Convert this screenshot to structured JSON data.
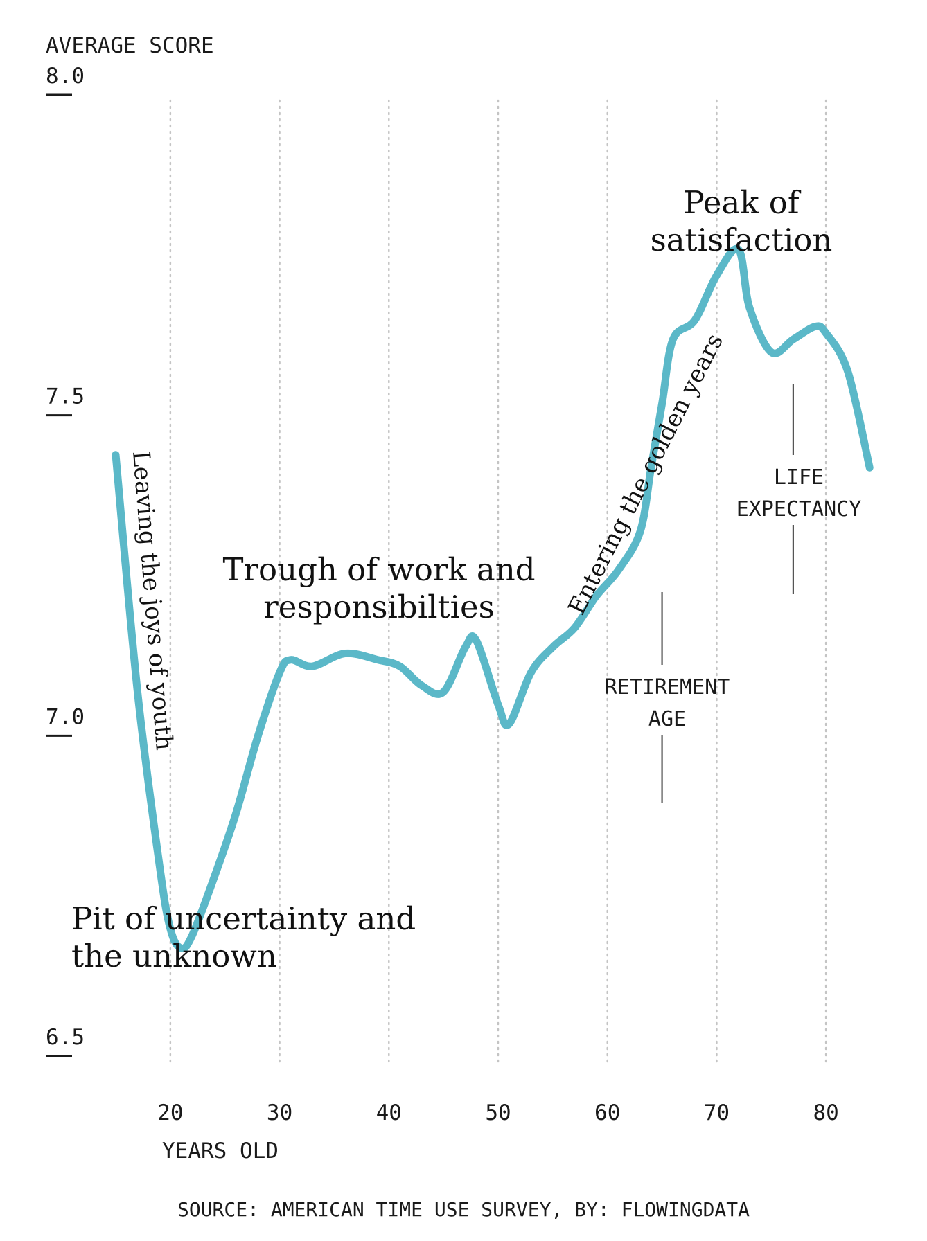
{
  "chart_data": {
    "type": "line",
    "ylabel": "AVERAGE SCORE",
    "xlabel": "YEARS OLD",
    "ylim": [
      6.5,
      8.0
    ],
    "xlim": [
      15,
      85
    ],
    "yticks": [
      "8.0",
      "7.5",
      "7.0",
      "6.5"
    ],
    "xticks": [
      "20",
      "30",
      "40",
      "50",
      "60",
      "70",
      "80"
    ],
    "grid": "vertical dotted lines at each x tick",
    "line_color": "#5bb8c8",
    "series": [
      {
        "x": [
          15,
          17,
          19,
          20,
          21,
          22,
          24,
          26,
          28,
          30,
          31,
          33,
          36,
          39,
          41,
          43,
          45,
          47,
          48,
          50,
          51,
          53,
          55,
          57,
          59,
          61,
          63,
          64,
          65,
          66,
          68,
          70,
          72,
          73,
          75,
          77,
          79,
          80,
          82,
          84
        ],
        "values": [
          7.42,
          7.05,
          6.78,
          6.68,
          6.65,
          6.67,
          6.76,
          6.86,
          6.98,
          7.08,
          7.1,
          7.09,
          7.11,
          7.1,
          7.09,
          7.06,
          7.05,
          7.12,
          7.13,
          7.03,
          7.0,
          7.08,
          7.12,
          7.15,
          7.2,
          7.24,
          7.3,
          7.4,
          7.5,
          7.6,
          7.63,
          7.7,
          7.74,
          7.65,
          7.58,
          7.6,
          7.62,
          7.61,
          7.55,
          7.4
        ]
      }
    ],
    "annotations": {
      "youth": "Leaving the joys of youth",
      "pit_line1": "Pit of uncertainty and",
      "pit_line2": "the unknown",
      "trough_line1": "Trough of work and",
      "trough_line2": "responsibilties",
      "golden": "Entering the golden years",
      "peak_line1": "Peak of",
      "peak_line2": "satisfaction",
      "retirement_line1": "RETIREMENT",
      "retirement_line2": "AGE",
      "life_line1": "LIFE",
      "life_line2": "EXPECTANCY"
    },
    "reference_x": {
      "retirement": 65,
      "life_expectancy": 77
    }
  },
  "source": "SOURCE: AMERICAN TIME USE SURVEY, BY: FLOWINGDATA"
}
